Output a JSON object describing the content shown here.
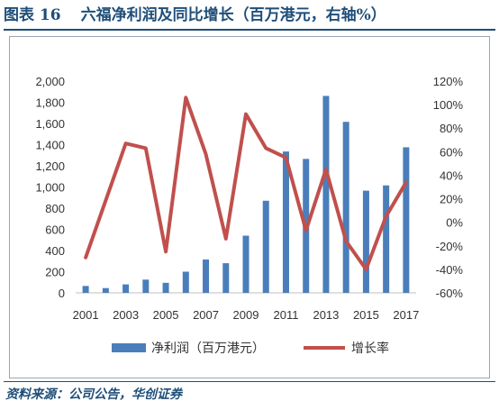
{
  "figure": {
    "label": "图表 16",
    "title": "六福净利润及同比增长（百万港元，右轴%）"
  },
  "source": "资料来源：公司公告，华创证券",
  "chart_data": {
    "type": "bar+line",
    "categories": [
      "2001",
      "2002",
      "2003",
      "2004",
      "2005",
      "2006",
      "2007",
      "2008",
      "2009",
      "2010",
      "2011",
      "2012",
      "2013",
      "2014",
      "2015",
      "2016",
      "2017"
    ],
    "x_tick_labels": [
      "2001",
      "2003",
      "2005",
      "2007",
      "2009",
      "2011",
      "2013",
      "2015",
      "2017"
    ],
    "series": [
      {
        "name": "净利润（百万港元）",
        "type": "bar",
        "axis": "left",
        "color": "#4a7ebb",
        "values": [
          65,
          45,
          80,
          125,
          95,
          200,
          315,
          280,
          540,
          870,
          1335,
          1265,
          1860,
          1615,
          965,
          1015,
          1375
        ]
      },
      {
        "name": "增长率",
        "type": "line",
        "axis": "right",
        "color": "#c0504d",
        "values": [
          -30,
          null,
          67,
          63,
          -25,
          106,
          58,
          -14,
          92,
          63,
          55,
          -7,
          45,
          -16,
          -40,
          5,
          34
        ]
      }
    ],
    "y_left": {
      "min": 0,
      "max": 2000,
      "step": 200,
      "tick_labels": [
        "0",
        "200",
        "400",
        "600",
        "800",
        "1,000",
        "1,200",
        "1,400",
        "1,600",
        "1,800",
        "2,000"
      ]
    },
    "y_right": {
      "min": -60,
      "max": 120,
      "step": 20,
      "tick_labels": [
        "-60%",
        "-40%",
        "-20%",
        "0%",
        "20%",
        "40%",
        "60%",
        "80%",
        "100%",
        "120%"
      ]
    },
    "legend_position": "bottom",
    "grid": false
  }
}
